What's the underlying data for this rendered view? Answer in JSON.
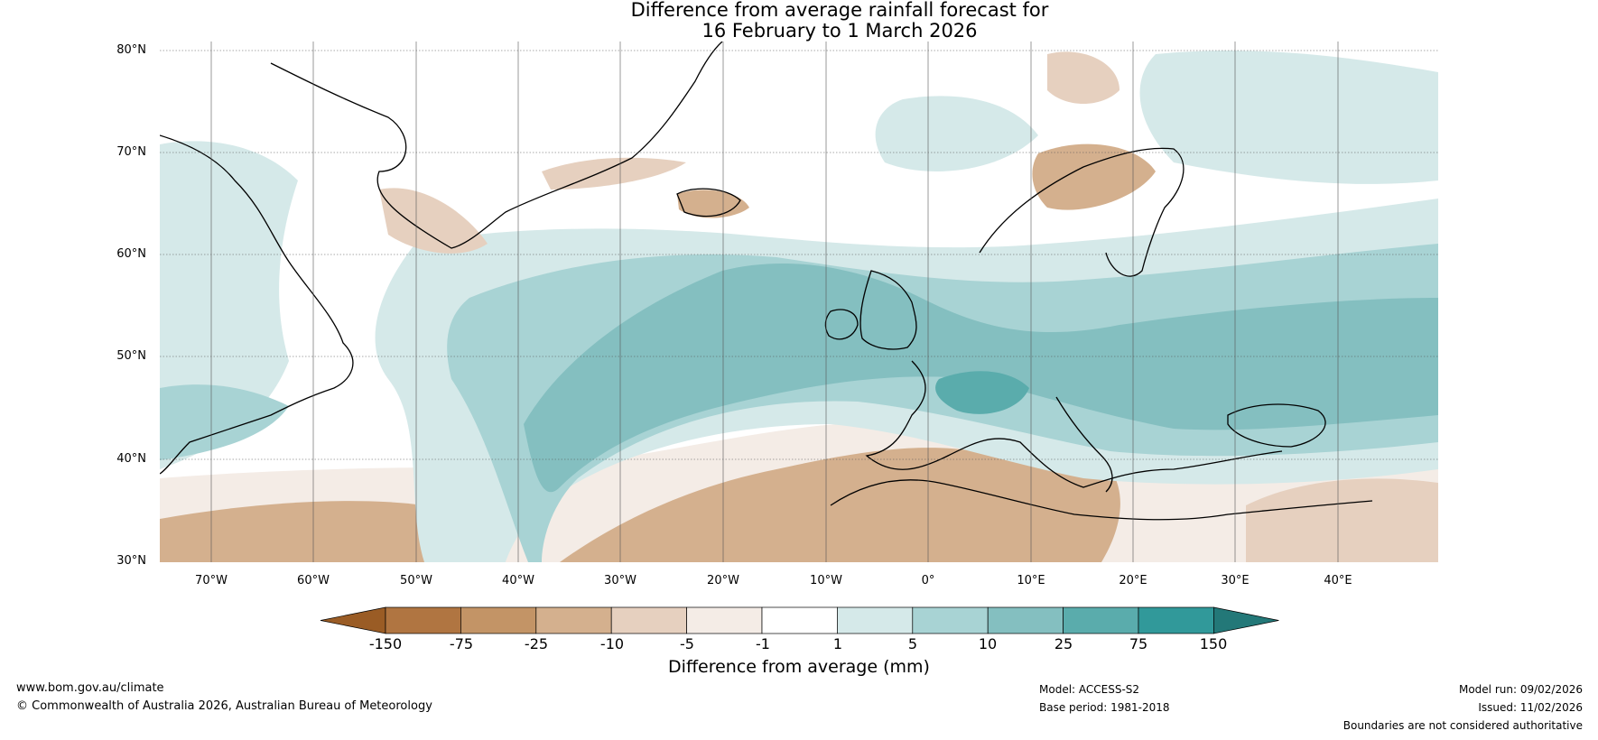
{
  "title": {
    "line1": "Difference from average rainfall forecast for",
    "line2": "16 February to 1 March 2026"
  },
  "latitude_labels": [
    "80°N",
    "70°N",
    "60°N",
    "50°N",
    "40°N",
    "30°N"
  ],
  "longitude_labels": [
    "70°W",
    "60°W",
    "50°W",
    "40°W",
    "30°W",
    "20°W",
    "10°W",
    "0°",
    "10°E",
    "20°E",
    "30°E",
    "40°E"
  ],
  "colorbar": {
    "title": "Difference from average (mm)",
    "tick_labels": [
      "-150",
      "-75",
      "-25",
      "-10",
      "-5",
      "-1",
      "1",
      "5",
      "10",
      "25",
      "75",
      "150"
    ],
    "colors": [
      "#9a5c25",
      "#b07541",
      "#c39466",
      "#d4b08e",
      "#e6d0bf",
      "#f4ece6",
      "#ffffff",
      "#d5e9e9",
      "#a8d3d4",
      "#84bfc0",
      "#5aacac",
      "#31999a",
      "#237878"
    ]
  },
  "footer": {
    "website": "www.bom.gov.au/climate",
    "copyright": "© Commonwealth of Australia 2026, Australian Bureau of Meteorology",
    "model": "Model: ACCESS-S2",
    "base_period": "Base period: 1981-2018",
    "model_run": "Model run: 09/02/2026",
    "issued": "Issued: 11/02/2026",
    "disclaimer": "Boundaries are not considered authoritative"
  }
}
